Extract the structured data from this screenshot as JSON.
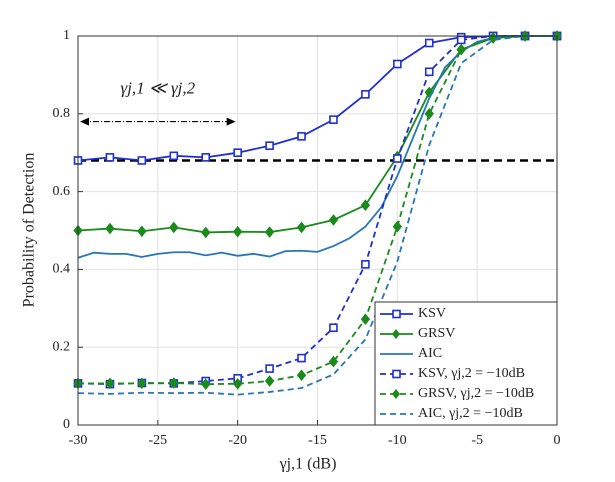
{
  "chart_data": {
    "type": "line",
    "xlabel": "γj,1 (dB)",
    "ylabel": "Probability of Detection",
    "xlim": [
      -30,
      0
    ],
    "xticks": [
      -30,
      -25,
      -20,
      -15,
      -10,
      -5,
      0
    ],
    "ylim": [
      0,
      1
    ],
    "yticks": [
      0,
      0.2,
      0.4,
      0.6,
      0.8,
      1
    ],
    "grid": true,
    "legend": "lower right",
    "annotation": "γj,1 ≪ γj,2",
    "arrow": {
      "x": [
        -30,
        -20
      ],
      "y": 0.78
    },
    "hline": 0.68,
    "series": [
      {
        "name": "KSV",
        "color": "#1f2fd0",
        "dash": false,
        "marker": "square",
        "x": [
          -30,
          -28,
          -26,
          -24,
          -22,
          -20,
          -18,
          -16,
          -14,
          -12,
          -10,
          -8,
          -6,
          -4,
          -2,
          0
        ],
        "values": [
          0.68,
          0.688,
          0.68,
          0.692,
          0.688,
          0.7,
          0.718,
          0.742,
          0.785,
          0.85,
          0.928,
          0.982,
          0.997,
          1,
          1,
          1
        ]
      },
      {
        "name": "GRSV",
        "color": "#1a8a1a",
        "dash": false,
        "marker": "diamond",
        "x": [
          -30,
          -28,
          -26,
          -24,
          -22,
          -20,
          -18,
          -16,
          -14,
          -12,
          -10,
          -8,
          -6,
          -4,
          -2,
          0
        ],
        "values": [
          0.5,
          0.505,
          0.498,
          0.508,
          0.495,
          0.497,
          0.496,
          0.508,
          0.527,
          0.565,
          0.69,
          0.855,
          0.965,
          0.995,
          1,
          1
        ]
      },
      {
        "name": "AIC",
        "color": "#2676b8",
        "dash": false,
        "marker": "none",
        "x": [
          -30,
          -29,
          -28,
          -27,
          -26,
          -25,
          -24,
          -23,
          -22,
          -21,
          -20,
          -19,
          -18,
          -17,
          -16,
          -15,
          -14,
          -13,
          -12,
          -11,
          -10,
          -9,
          -8,
          -7,
          -6,
          -5,
          -4,
          -3,
          -2,
          -1,
          0
        ],
        "values": [
          0.43,
          0.443,
          0.44,
          0.44,
          0.432,
          0.44,
          0.444,
          0.444,
          0.436,
          0.443,
          0.435,
          0.44,
          0.433,
          0.447,
          0.448,
          0.445,
          0.46,
          0.48,
          0.51,
          0.56,
          0.64,
          0.74,
          0.84,
          0.92,
          0.96,
          0.985,
          0.995,
          1,
          1,
          1,
          1
        ]
      },
      {
        "name": "KSV, γj,2 = −10dB",
        "color": "#1f2fd0",
        "dash": true,
        "marker": "square",
        "x": [
          -30,
          -28,
          -26,
          -24,
          -22,
          -20,
          -18,
          -16,
          -14,
          -12,
          -10,
          -8,
          -6,
          -4,
          -2,
          0
        ],
        "values": [
          0.107,
          0.105,
          0.108,
          0.107,
          0.113,
          0.12,
          0.145,
          0.172,
          0.25,
          0.413,
          0.685,
          0.908,
          0.99,
          1,
          1,
          1
        ]
      },
      {
        "name": "GRSV, γj,2 = −10dB",
        "color": "#1a8a1a",
        "dash": true,
        "marker": "diamond",
        "x": [
          -30,
          -28,
          -26,
          -24,
          -22,
          -20,
          -18,
          -16,
          -14,
          -12,
          -10,
          -8,
          -6,
          -4,
          -2,
          0
        ],
        "values": [
          0.107,
          0.107,
          0.107,
          0.108,
          0.105,
          0.106,
          0.113,
          0.128,
          0.163,
          0.272,
          0.51,
          0.8,
          0.965,
          0.995,
          1,
          1
        ]
      },
      {
        "name": "AIC, γj,2 = −10dB",
        "color": "#2676b8",
        "dash": true,
        "marker": "none",
        "x": [
          -30,
          -28,
          -26,
          -24,
          -22,
          -20,
          -18,
          -16,
          -14,
          -12,
          -10,
          -8,
          -6,
          -4,
          -2,
          0
        ],
        "values": [
          0.082,
          0.08,
          0.083,
          0.082,
          0.083,
          0.078,
          0.085,
          0.095,
          0.13,
          0.22,
          0.42,
          0.72,
          0.93,
          0.99,
          1,
          1
        ]
      }
    ]
  }
}
